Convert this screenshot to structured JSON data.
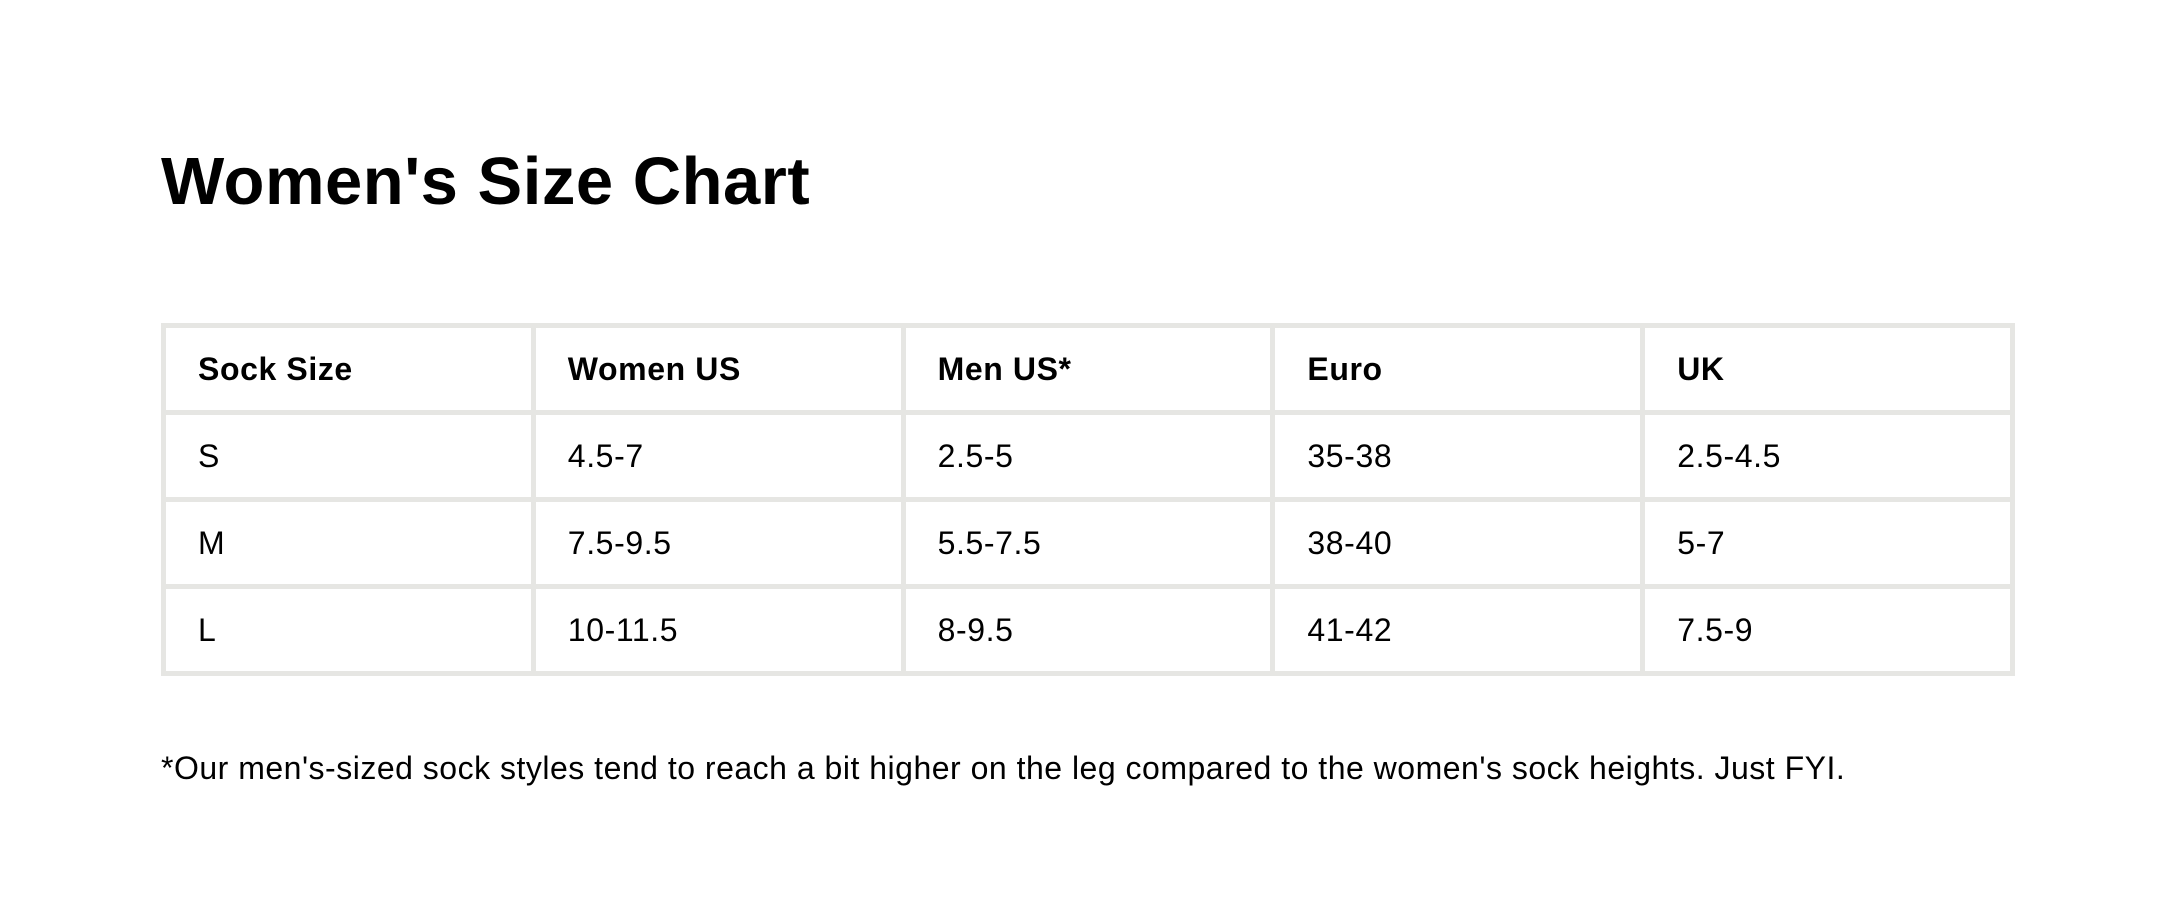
{
  "title": "Women's Size Chart",
  "table": {
    "headers": [
      "Sock Size",
      "Women US",
      "Men US*",
      "Euro",
      "UK"
    ],
    "rows": [
      [
        "S",
        "4.5-7",
        "2.5-5",
        "35-38",
        "2.5-4.5"
      ],
      [
        "M",
        "7.5-9.5",
        "5.5-7.5",
        "38-40",
        "5-7"
      ],
      [
        "L",
        "10-11.5",
        "8-9.5",
        "41-42",
        "7.5-9"
      ]
    ]
  },
  "footnote": "*Our men's-sized sock styles tend to reach a bit higher on the leg compared to the women's sock heights. Just FYI.",
  "colors": {
    "text": "#000000",
    "background": "#ffffff",
    "table_border": "#e6e6e3"
  }
}
